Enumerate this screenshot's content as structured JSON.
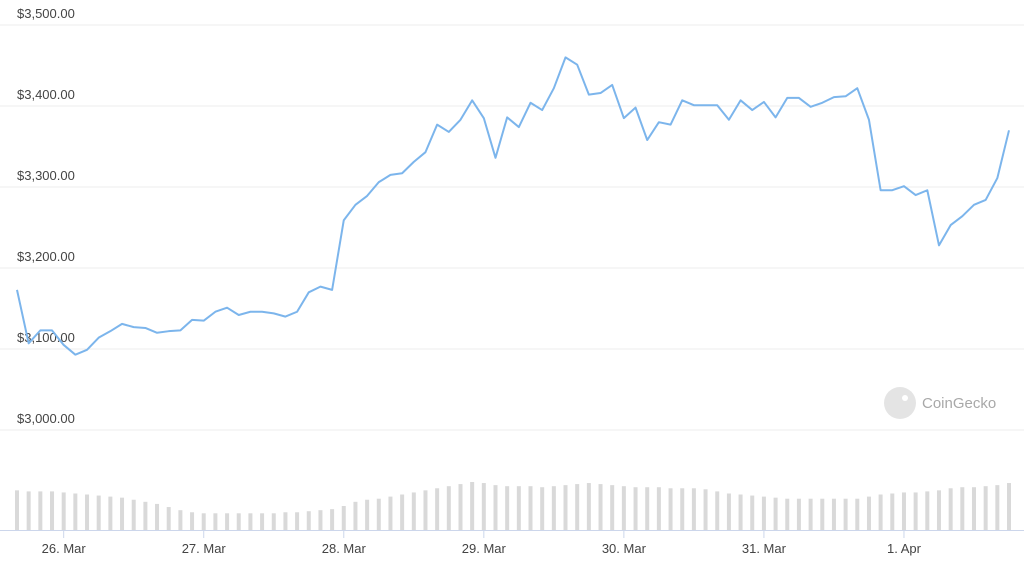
{
  "chart_data": {
    "type": "line",
    "color": "#7cb5ec",
    "values": [
      3173,
      3107,
      3123,
      3123,
      3105,
      3093,
      3099,
      3114,
      3122,
      3131,
      3127,
      3126,
      3120,
      3122,
      3123,
      3136,
      3135,
      3146,
      3151,
      3142,
      3146,
      3146,
      3144,
      3140,
      3146,
      3170,
      3177,
      3173,
      3259,
      3278,
      3289,
      3306,
      3315,
      3317,
      3331,
      3343,
      3377,
      3368,
      3383,
      3407,
      3385,
      3336,
      3386,
      3374,
      3404,
      3395,
      3422,
      3460,
      3451,
      3414,
      3416,
      3426,
      3385,
      3398,
      3358,
      3380,
      3377,
      3407,
      3401,
      3401,
      3401,
      3383,
      3407,
      3395,
      3405,
      3386,
      3410,
      3410,
      3399,
      3404,
      3411,
      3412,
      3422,
      3383,
      3296,
      3296,
      3301,
      3290,
      3296,
      3228,
      3253,
      3264,
      3278,
      3284,
      3311,
      3370
    ],
    "volume": [
      38,
      37,
      37,
      37,
      36,
      35,
      34,
      33,
      32,
      31,
      29,
      27,
      25,
      22,
      19,
      17,
      16,
      16,
      16,
      16,
      16,
      16,
      16,
      17,
      17,
      18,
      19,
      20,
      23,
      27,
      29,
      30,
      32,
      34,
      36,
      38,
      40,
      42,
      44,
      46,
      45,
      43,
      42,
      42,
      42,
      41,
      42,
      43,
      44,
      45,
      44,
      43,
      42,
      41,
      41,
      41,
      40,
      40,
      40,
      39,
      37,
      35,
      34,
      33,
      32,
      31,
      30,
      30,
      30,
      30,
      30,
      30,
      30,
      32,
      34,
      35,
      36,
      36,
      37,
      38,
      40,
      41,
      41,
      42,
      43,
      45
    ],
    "volume_color": "#d9d9d9",
    "xlim": [
      0,
      85
    ],
    "xticks": [
      {
        "value": 4,
        "label": "26. Mar"
      },
      {
        "value": 16,
        "label": "27. Mar"
      },
      {
        "value": 28,
        "label": "28. Mar"
      },
      {
        "value": 40,
        "label": "29. Mar"
      },
      {
        "value": 52,
        "label": "30. Mar"
      },
      {
        "value": 64,
        "label": "31. Mar"
      },
      {
        "value": 76,
        "label": "1. Apr"
      }
    ],
    "ylim": [
      3000,
      3500
    ],
    "yticks": [
      {
        "value": 3000,
        "label": "$3,000.00"
      },
      {
        "value": 3100,
        "label": "$3,100.00"
      },
      {
        "value": 3200,
        "label": "$3,200.00"
      },
      {
        "value": 3300,
        "label": "$3,300.00"
      },
      {
        "value": 3400,
        "label": "$3,400.00"
      },
      {
        "value": 3500,
        "label": "$3,500.00"
      }
    ],
    "grid": true,
    "watermark": "CoinGecko"
  }
}
